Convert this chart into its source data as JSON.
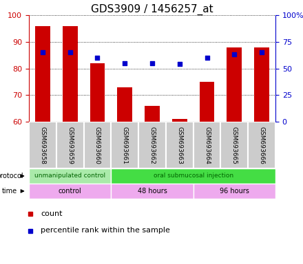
{
  "title": "GDS3909 / 1456257_at",
  "samples": [
    "GSM693658",
    "GSM693659",
    "GSM693660",
    "GSM693661",
    "GSM693662",
    "GSM693663",
    "GSM693664",
    "GSM693665",
    "GSM693666"
  ],
  "bar_values": [
    96,
    96,
    82,
    73,
    66,
    61,
    75,
    88,
    88
  ],
  "dot_values_pct": [
    65,
    65,
    60,
    55,
    55,
    54,
    60,
    63,
    65
  ],
  "ylim": [
    60,
    100
  ],
  "yticks": [
    60,
    70,
    80,
    90,
    100
  ],
  "right_yticks": [
    0,
    25,
    50,
    75,
    100
  ],
  "right_ylabels": [
    "0",
    "25",
    "50",
    "75",
    "100%"
  ],
  "bar_color": "#cc0000",
  "dot_color": "#0000cc",
  "title_fontsize": 11,
  "protocol_labels": [
    {
      "text": "unmanipulated control",
      "start": 0,
      "end": 3,
      "color": "#aaeaaa"
    },
    {
      "text": "oral submucosal injection",
      "start": 3,
      "end": 9,
      "color": "#44dd44"
    }
  ],
  "time_labels": [
    {
      "text": "control",
      "start": 0,
      "end": 3,
      "color": "#eeaaee"
    },
    {
      "text": "48 hours",
      "start": 3,
      "end": 6,
      "color": "#eeaaee"
    },
    {
      "text": "96 hours",
      "start": 6,
      "end": 9,
      "color": "#eeaaee"
    }
  ],
  "legend_count_color": "#cc0000",
  "legend_dot_color": "#0000cc",
  "background_color": "#ffffff",
  "tick_label_bg": "#cccccc"
}
